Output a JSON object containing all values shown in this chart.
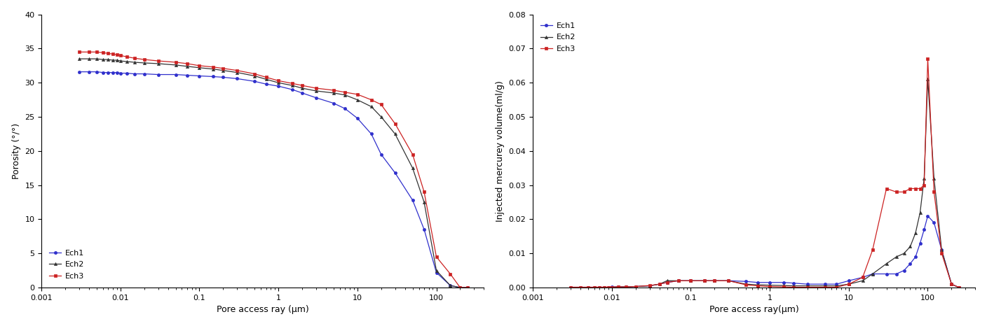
{
  "chart1": {
    "xlabel": "Pore access ray (μm)",
    "ylabel": "Porosity (°/°)",
    "xlim": [
      0.001,
      400
    ],
    "ylim": [
      0,
      40
    ],
    "yticks": [
      0,
      5,
      10,
      15,
      20,
      25,
      30,
      35,
      40
    ],
    "xticks": [
      0.001,
      0.01,
      0.1,
      1,
      10,
      100
    ],
    "xticklabels": [
      "0.001",
      "0.01",
      "0.1",
      "1",
      "10",
      "100"
    ],
    "legend_loc": "lower left",
    "ech1": {
      "color": "#3030cc",
      "marker": "o",
      "markersize": 3,
      "x": [
        0.003,
        0.004,
        0.005,
        0.006,
        0.007,
        0.008,
        0.009,
        0.01,
        0.012,
        0.015,
        0.02,
        0.03,
        0.05,
        0.07,
        0.1,
        0.15,
        0.2,
        0.3,
        0.5,
        0.7,
        1.0,
        1.5,
        2.0,
        3.0,
        5.0,
        7.0,
        10.0,
        15.0,
        20.0,
        30.0,
        50.0,
        70.0,
        100.0,
        150.0,
        200.0,
        250.0
      ],
      "y": [
        31.6,
        31.6,
        31.6,
        31.5,
        31.5,
        31.5,
        31.5,
        31.4,
        31.4,
        31.3,
        31.3,
        31.2,
        31.2,
        31.1,
        31.0,
        30.9,
        30.8,
        30.6,
        30.2,
        29.8,
        29.5,
        29.0,
        28.5,
        27.8,
        27.0,
        26.2,
        24.8,
        22.5,
        19.5,
        16.8,
        12.8,
        8.5,
        2.2,
        0.3,
        0.0,
        0.0
      ]
    },
    "ech2": {
      "color": "#333333",
      "marker": "^",
      "markersize": 3,
      "x": [
        0.003,
        0.004,
        0.005,
        0.006,
        0.007,
        0.008,
        0.009,
        0.01,
        0.012,
        0.015,
        0.02,
        0.03,
        0.05,
        0.07,
        0.1,
        0.15,
        0.2,
        0.3,
        0.5,
        0.7,
        1.0,
        1.5,
        2.0,
        3.0,
        5.0,
        7.0,
        10.0,
        15.0,
        20.0,
        30.0,
        50.0,
        70.0,
        100.0,
        150.0,
        200.0,
        250.0
      ],
      "y": [
        33.5,
        33.5,
        33.5,
        33.4,
        33.4,
        33.3,
        33.3,
        33.2,
        33.1,
        33.0,
        32.9,
        32.8,
        32.6,
        32.4,
        32.2,
        32.0,
        31.8,
        31.5,
        31.0,
        30.5,
        30.0,
        29.6,
        29.2,
        28.8,
        28.5,
        28.2,
        27.5,
        26.5,
        25.0,
        22.5,
        17.5,
        12.5,
        2.5,
        0.3,
        0.0,
        0.0
      ]
    },
    "ech3": {
      "color": "#cc2222",
      "marker": "s",
      "markersize": 3,
      "x": [
        0.003,
        0.004,
        0.005,
        0.006,
        0.007,
        0.008,
        0.009,
        0.01,
        0.012,
        0.015,
        0.02,
        0.03,
        0.05,
        0.07,
        0.1,
        0.15,
        0.2,
        0.3,
        0.5,
        0.7,
        1.0,
        1.5,
        2.0,
        3.0,
        5.0,
        7.0,
        10.0,
        15.0,
        20.0,
        30.0,
        50.0,
        70.0,
        100.0,
        150.0,
        200.0,
        250.0
      ],
      "y": [
        34.5,
        34.5,
        34.5,
        34.4,
        34.3,
        34.2,
        34.1,
        34.0,
        33.8,
        33.6,
        33.4,
        33.2,
        33.0,
        32.8,
        32.5,
        32.3,
        32.1,
        31.8,
        31.3,
        30.8,
        30.3,
        29.9,
        29.6,
        29.2,
        28.9,
        28.6,
        28.3,
        27.5,
        26.8,
        24.0,
        19.5,
        14.0,
        4.5,
        2.0,
        0.0,
        0.0
      ]
    }
  },
  "chart2": {
    "xlabel": "Pore access ray(μm)",
    "ylabel": "Injected mercurey volume(ml/g)",
    "xlim": [
      0.001,
      400
    ],
    "ylim": [
      0,
      0.08
    ],
    "yticks": [
      0,
      0.01,
      0.02,
      0.03,
      0.04,
      0.05,
      0.06,
      0.07,
      0.08
    ],
    "xticks": [
      0.001,
      0.01,
      0.1,
      1,
      10,
      100
    ],
    "xticklabels": [
      "0.001",
      "0.01",
      "0.1",
      "1",
      "10",
      "100"
    ],
    "legend_loc": "upper left",
    "ech1": {
      "color": "#3030cc",
      "marker": "o",
      "markersize": 3,
      "x": [
        0.003,
        0.004,
        0.005,
        0.006,
        0.007,
        0.008,
        0.009,
        0.01,
        0.012,
        0.015,
        0.02,
        0.03,
        0.04,
        0.05,
        0.07,
        0.1,
        0.15,
        0.2,
        0.3,
        0.5,
        0.7,
        1.0,
        1.5,
        2.0,
        3.0,
        5.0,
        7.0,
        10.0,
        15.0,
        20.0,
        30.0,
        40.0,
        50.0,
        60.0,
        70.0,
        80.0,
        90.0,
        100.0,
        120.0,
        150.0,
        200.0,
        250.0
      ],
      "y": [
        0.0001,
        0.0001,
        0.0001,
        0.0001,
        0.0001,
        0.0001,
        0.0001,
        0.0002,
        0.0002,
        0.0002,
        0.0003,
        0.0005,
        0.001,
        0.0015,
        0.002,
        0.002,
        0.002,
        0.002,
        0.002,
        0.0018,
        0.0015,
        0.0015,
        0.0015,
        0.0013,
        0.001,
        0.001,
        0.001,
        0.002,
        0.003,
        0.004,
        0.004,
        0.004,
        0.005,
        0.007,
        0.009,
        0.013,
        0.017,
        0.021,
        0.019,
        0.011,
        0.001,
        0.0
      ]
    },
    "ech2": {
      "color": "#333333",
      "marker": "^",
      "markersize": 3,
      "x": [
        0.003,
        0.004,
        0.005,
        0.006,
        0.007,
        0.008,
        0.009,
        0.01,
        0.012,
        0.015,
        0.02,
        0.03,
        0.04,
        0.05,
        0.07,
        0.1,
        0.15,
        0.2,
        0.3,
        0.5,
        0.7,
        1.0,
        1.5,
        2.0,
        3.0,
        5.0,
        7.0,
        10.0,
        15.0,
        20.0,
        30.0,
        40.0,
        50.0,
        60.0,
        70.0,
        80.0,
        90.0,
        100.0,
        120.0,
        150.0,
        200.0,
        250.0
      ],
      "y": [
        0.0001,
        0.0001,
        0.0001,
        0.0001,
        0.0001,
        0.0001,
        0.0001,
        0.0001,
        0.0002,
        0.0002,
        0.0003,
        0.0005,
        0.001,
        0.002,
        0.002,
        0.002,
        0.002,
        0.002,
        0.002,
        0.001,
        0.0008,
        0.0007,
        0.0006,
        0.0005,
        0.0005,
        0.0005,
        0.0005,
        0.001,
        0.002,
        0.004,
        0.007,
        0.009,
        0.01,
        0.012,
        0.016,
        0.022,
        0.032,
        0.061,
        0.032,
        0.011,
        0.001,
        0.0
      ]
    },
    "ech3": {
      "color": "#cc2222",
      "marker": "s",
      "markersize": 3,
      "x": [
        0.003,
        0.004,
        0.005,
        0.006,
        0.007,
        0.008,
        0.009,
        0.01,
        0.012,
        0.015,
        0.02,
        0.03,
        0.04,
        0.05,
        0.07,
        0.1,
        0.15,
        0.2,
        0.3,
        0.5,
        0.7,
        1.0,
        1.5,
        2.0,
        3.0,
        5.0,
        7.0,
        10.0,
        15.0,
        20.0,
        30.0,
        40.0,
        50.0,
        60.0,
        70.0,
        80.0,
        90.0,
        100.0,
        120.0,
        150.0,
        200.0,
        250.0
      ],
      "y": [
        0.0001,
        0.0001,
        0.0001,
        0.0001,
        0.0001,
        0.0001,
        0.0001,
        0.0001,
        0.0002,
        0.0002,
        0.0003,
        0.0006,
        0.001,
        0.0015,
        0.002,
        0.002,
        0.002,
        0.002,
        0.002,
        0.0008,
        0.0005,
        0.0003,
        0.0002,
        0.0001,
        0.0001,
        0.0001,
        0.0001,
        0.001,
        0.003,
        0.011,
        0.029,
        0.028,
        0.028,
        0.029,
        0.029,
        0.029,
        0.03,
        0.067,
        0.028,
        0.01,
        0.001,
        0.0
      ]
    }
  }
}
